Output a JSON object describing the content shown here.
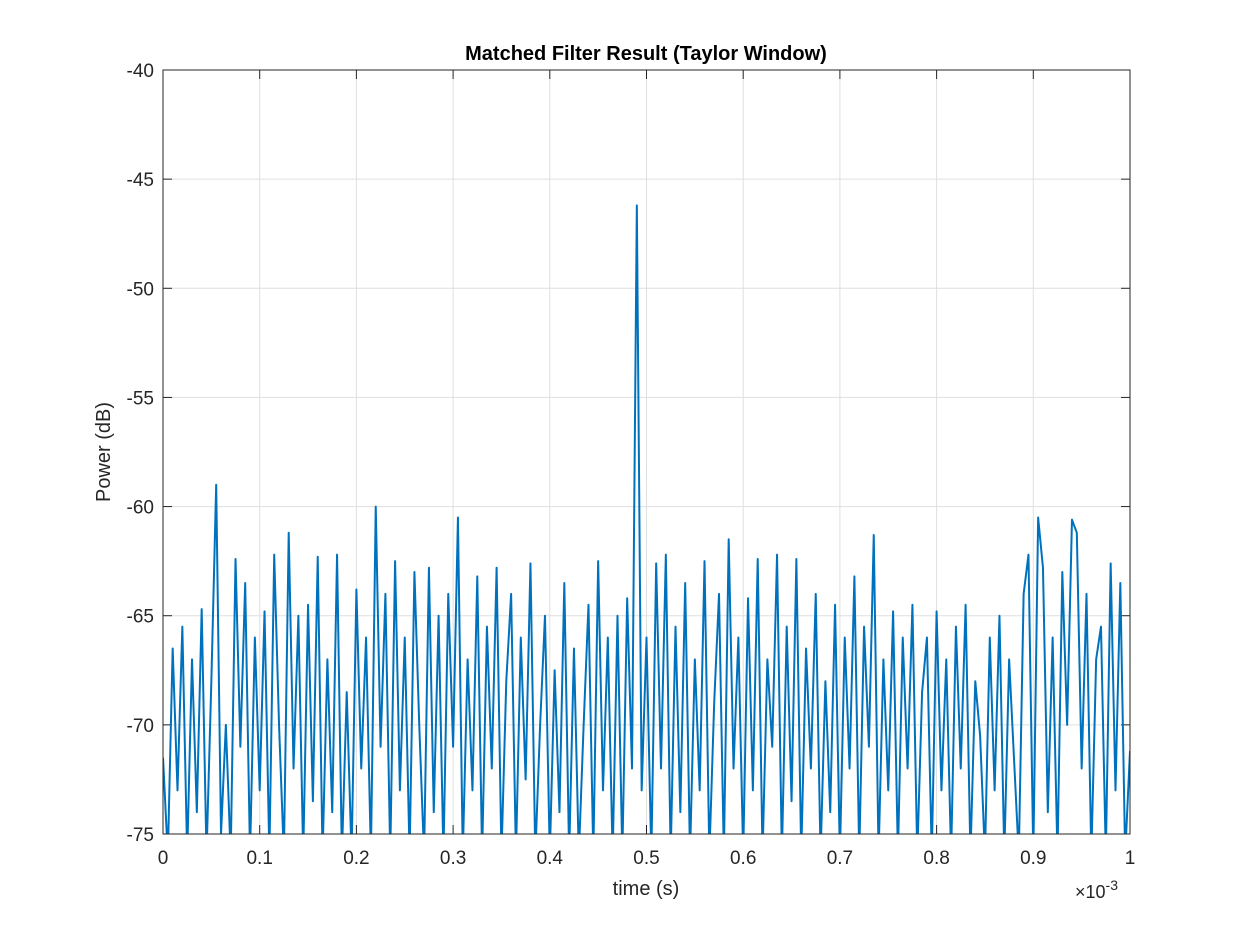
{
  "chart_data": {
    "type": "line",
    "title": "Matched Filter Result (Taylor Window)",
    "x_label": "time (s)",
    "y_label": "Power (dB)",
    "x_multiplier": "×10",
    "x_multiplier_exponent": "-3",
    "xlim": [
      0,
      1
    ],
    "ylim": [
      -75,
      -40
    ],
    "xticks": [
      0,
      0.1,
      0.2,
      0.3,
      0.4,
      0.5,
      0.6,
      0.7,
      0.8,
      0.9,
      1
    ],
    "yticks": [
      -75,
      -70,
      -65,
      -60,
      -55,
      -50,
      -45,
      -40
    ],
    "grid": true,
    "x": [
      0,
      0.005,
      0.01,
      0.015,
      0.02,
      0.025,
      0.03,
      0.035,
      0.04,
      0.045,
      0.05,
      0.055,
      0.06,
      0.065,
      0.07,
      0.075,
      0.08,
      0.085,
      0.09,
      0.095,
      0.1,
      0.105,
      0.11,
      0.115,
      0.12,
      0.125,
      0.13,
      0.135,
      0.14,
      0.145,
      0.15,
      0.155,
      0.16,
      0.165,
      0.17,
      0.175,
      0.18,
      0.185,
      0.19,
      0.195,
      0.2,
      0.205,
      0.21,
      0.215,
      0.22,
      0.225,
      0.23,
      0.235,
      0.24,
      0.245,
      0.25,
      0.255,
      0.26,
      0.265,
      0.27,
      0.275,
      0.28,
      0.285,
      0.29,
      0.295,
      0.3,
      0.305,
      0.31,
      0.315,
      0.32,
      0.325,
      0.33,
      0.335,
      0.34,
      0.345,
      0.35,
      0.355,
      0.36,
      0.365,
      0.37,
      0.375,
      0.38,
      0.385,
      0.39,
      0.395,
      0.4,
      0.405,
      0.41,
      0.415,
      0.42,
      0.425,
      0.43,
      0.435,
      0.44,
      0.445,
      0.45,
      0.455,
      0.46,
      0.465,
      0.47,
      0.475,
      0.48,
      0.485,
      0.49,
      0.495,
      0.5,
      0.505,
      0.51,
      0.515,
      0.52,
      0.525,
      0.53,
      0.535,
      0.54,
      0.545,
      0.55,
      0.555,
      0.56,
      0.565,
      0.57,
      0.575,
      0.58,
      0.585,
      0.59,
      0.595,
      0.6,
      0.605,
      0.61,
      0.615,
      0.62,
      0.625,
      0.63,
      0.635,
      0.64,
      0.645,
      0.65,
      0.655,
      0.66,
      0.665,
      0.67,
      0.675,
      0.68,
      0.685,
      0.69,
      0.695,
      0.7,
      0.705,
      0.71,
      0.715,
      0.72,
      0.725,
      0.73,
      0.735,
      0.74,
      0.745,
      0.75,
      0.755,
      0.76,
      0.765,
      0.77,
      0.775,
      0.78,
      0.785,
      0.79,
      0.795,
      0.8,
      0.805,
      0.81,
      0.815,
      0.82,
      0.825,
      0.83,
      0.835,
      0.84,
      0.845,
      0.85,
      0.855,
      0.86,
      0.865,
      0.87,
      0.875,
      0.88,
      0.885,
      0.89,
      0.895,
      0.9,
      0.905,
      0.91,
      0.915,
      0.92,
      0.925,
      0.93,
      0.935,
      0.94,
      0.945,
      0.95,
      0.955,
      0.96,
      0.965,
      0.97,
      0.975,
      0.98,
      0.985,
      0.99,
      0.995,
      1
    ],
    "series": [
      {
        "color": "#0072bd",
        "values": [
          -71.5,
          -76,
          -66.5,
          -73,
          -65.5,
          -76,
          -67,
          -74,
          -64.7,
          -76,
          -68,
          -59,
          -75,
          -70,
          -76,
          -62.4,
          -71,
          -63.5,
          -76,
          -66,
          -73,
          -64.8,
          -76,
          -62.2,
          -70,
          -76,
          -61.2,
          -72,
          -65,
          -76,
          -64.5,
          -73.5,
          -62.3,
          -76,
          -67,
          -74,
          -62.2,
          -76,
          -68.5,
          -76,
          -63.8,
          -72,
          -66,
          -76,
          -60,
          -71,
          -64,
          -76,
          -62.5,
          -73,
          -66,
          -76,
          -63,
          -70,
          -76,
          -62.8,
          -74,
          -65,
          -76,
          -64,
          -71,
          -60.5,
          -76,
          -67,
          -73,
          -63.2,
          -76,
          -65.5,
          -72,
          -62.8,
          -76,
          -68,
          -64,
          -76,
          -66,
          -72.5,
          -62.6,
          -76,
          -70,
          -65,
          -76,
          -67.5,
          -74,
          -63.5,
          -76,
          -66.5,
          -76,
          -70,
          -64.5,
          -76,
          -62.5,
          -73,
          -66,
          -76,
          -65,
          -76,
          -64.2,
          -72,
          -46.2,
          -73,
          -66,
          -76,
          -62.6,
          -72,
          -62.2,
          -76,
          -65.5,
          -74,
          -63.5,
          -76,
          -67,
          -73,
          -62.5,
          -76,
          -69,
          -64,
          -76,
          -61.5,
          -72,
          -66,
          -76,
          -64.2,
          -73,
          -62.4,
          -76,
          -67,
          -71,
          -62.2,
          -76,
          -65.5,
          -73.5,
          -62.4,
          -76,
          -66.5,
          -72,
          -64,
          -76,
          -68,
          -74,
          -64.5,
          -76,
          -66,
          -72,
          -63.2,
          -76,
          -65.5,
          -71,
          -61.3,
          -76,
          -67,
          -73,
          -64.8,
          -76,
          -66,
          -72,
          -64.5,
          -76,
          -68.5,
          -66,
          -76,
          -64.8,
          -73,
          -67,
          -76,
          -65.5,
          -72,
          -64.5,
          -76,
          -68,
          -70.5,
          -76,
          -66,
          -73,
          -65,
          -76,
          -67,
          -71.5,
          -76,
          -64,
          -62.2,
          -76,
          -60.5,
          -62.8,
          -74,
          -66,
          -76,
          -63,
          -70,
          -60.6,
          -61.2,
          -72,
          -64,
          -76,
          -67,
          -65.5,
          -76,
          -62.6,
          -73,
          -63.5,
          -76,
          -71.2
        ]
      }
    ]
  }
}
